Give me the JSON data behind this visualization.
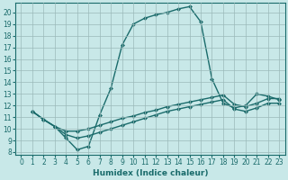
{
  "title": "",
  "xlabel": "Humidex (Indice chaleur)",
  "ylabel": "",
  "xlim": [
    -0.5,
    23.5
  ],
  "ylim": [
    7.8,
    20.8
  ],
  "xticks": [
    0,
    1,
    2,
    3,
    4,
    5,
    6,
    7,
    8,
    9,
    10,
    11,
    12,
    13,
    14,
    15,
    16,
    17,
    18,
    19,
    20,
    21,
    22,
    23
  ],
  "yticks": [
    8,
    9,
    10,
    11,
    12,
    13,
    14,
    15,
    16,
    17,
    18,
    19,
    20
  ],
  "bg_color": "#c8e8e8",
  "line_color": "#1a6b6b",
  "line_width": 1.0,
  "marker": "D",
  "marker_size": 2.0,
  "lines": [
    {
      "x": [
        1,
        2,
        3,
        4,
        5,
        6,
        7,
        8,
        9,
        10,
        11,
        12,
        13,
        14,
        15,
        16,
        17,
        18,
        19,
        20,
        21,
        22,
        23
      ],
      "y": [
        11.5,
        10.8,
        10.2,
        9.2,
        8.2,
        8.5,
        11.2,
        13.5,
        17.2,
        19.0,
        19.5,
        19.8,
        20.0,
        20.3,
        20.5,
        19.2,
        14.3,
        12.2,
        11.8,
        12.0,
        13.0,
        12.8,
        12.5
      ]
    },
    {
      "x": [
        1,
        2,
        3,
        4,
        5,
        6,
        7,
        8,
        9,
        10,
        11,
        12,
        13,
        14,
        15,
        16,
        17,
        18,
        19,
        20,
        21,
        22,
        23
      ],
      "y": [
        11.5,
        10.8,
        10.2,
        9.8,
        9.8,
        10.0,
        10.3,
        10.6,
        10.9,
        11.1,
        11.4,
        11.6,
        11.9,
        12.1,
        12.3,
        12.5,
        12.7,
        12.9,
        12.1,
        11.9,
        12.2,
        12.6,
        12.6
      ]
    },
    {
      "x": [
        1,
        2,
        3,
        4,
        5,
        6,
        7,
        8,
        9,
        10,
        11,
        12,
        13,
        14,
        15,
        16,
        17,
        18,
        19,
        20,
        21,
        22,
        23
      ],
      "y": [
        11.5,
        10.8,
        10.2,
        9.5,
        9.2,
        9.4,
        9.7,
        10.0,
        10.3,
        10.6,
        10.9,
        11.2,
        11.5,
        11.7,
        11.9,
        12.1,
        12.3,
        12.5,
        11.7,
        11.5,
        11.8,
        12.2,
        12.2
      ]
    }
  ],
  "grid_color": "#9bbaba",
  "tick_fontsize": 5.5,
  "xlabel_fontsize": 6.5
}
